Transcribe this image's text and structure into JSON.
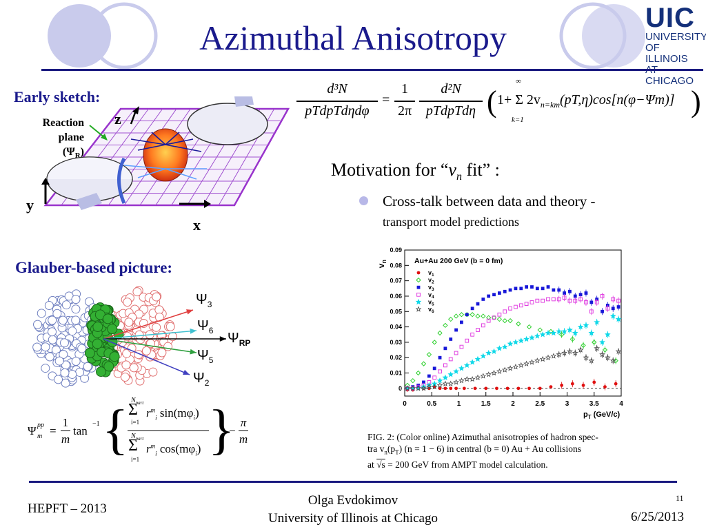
{
  "slide": {
    "title": "Azimuthal Anisotropy",
    "logo": {
      "big": "UIC",
      "line1": "UNIVERSITY",
      "line2": "OF ILLINOIS",
      "line3": "AT CHICAGO"
    },
    "early_sketch": {
      "heading": "Early sketch:",
      "reaction_plane_1": "Reaction",
      "reaction_plane_2": "plane",
      "reaction_plane_3": "(Ψ",
      "reaction_plane_sub": "R",
      "reaction_plane_4": ")",
      "axis_z": "z",
      "axis_y": "y",
      "axis_x": "x"
    },
    "equation": {
      "lhs_num": "d³N",
      "lhs_den": "pTdpTdηdφ",
      "equals": "=",
      "frac_num": "1",
      "frac_den": "2π",
      "rhs_num": "d²N",
      "rhs_den": "pTdpTdη",
      "body": "1+ Σ 2v",
      "sub": "n=km",
      "tail": "(pT,η)cos[n(φ−Ψm)]",
      "sum_top": "∞",
      "sum_bot": "k=1"
    },
    "motivation": {
      "heading_pre": "Motivation for “",
      "heading_v": "v",
      "heading_sub": "n",
      "heading_post": " fit” :",
      "bullet_1": "Cross-talk between data and theory -",
      "bullet_2": "transport model predictions"
    },
    "glauber": {
      "heading": "Glauber-based picture:",
      "psi3": "Ψ",
      "psi3_sub": "3",
      "psi6": "Ψ",
      "psi6_sub": "6",
      "psirp": "Ψ",
      "psirp_sub": "RP",
      "psi5": "Ψ",
      "psi5_sub": "5",
      "psi2": "Ψ",
      "psi2_sub": "2",
      "formula_lhs": "Ψ",
      "formula_sup": "pp",
      "formula_sub": "m",
      "formula_eq": "=",
      "formula_frac_num": "1",
      "formula_frac_den": "m",
      "formula_tan": "tan",
      "formula_tan_sup": "−1",
      "formula_sum_top": "N",
      "formula_sum_top_sub": "part",
      "formula_sum_bot": "i=1",
      "formula_num_term": "r",
      "formula_num_func": "sin(mφ",
      "formula_den_func": "cos(mφ",
      "formula_term_sub": "i",
      "formula_term_sup": "m",
      "formula_close": ")",
      "formula_minus": "−",
      "formula_pi": "π",
      "formula_pi_den": "m"
    },
    "caption": {
      "line1": "FIG. 2:  (Color online) Azimuthal anisotropies of hadron spec-",
      "line2": "tra v",
      "line2_sub": "n",
      "line2_rest": "(p",
      "line2_sub2": "T",
      "line2_rest2": ") (n = 1 − 6) in central (b = 0) Au + Au collisions",
      "line3_pre": "at ",
      "line3_sqrt": "√s",
      "line3_rest": " = 200 GeV from AMPT model calculation."
    },
    "footer": {
      "left": "HEPFT – 2013",
      "center_1": "Olga Evdokimov",
      "center_2": "University of Illinois at Chicago",
      "page": "11",
      "date": "6/25/2013"
    },
    "colors": {
      "accent": "#1a1a8c",
      "v1": "#e01010",
      "v2": "#30d030",
      "v3": "#1818d8",
      "v4": "#e040e0",
      "v5": "#10d8e8",
      "v6": "#505050"
    }
  },
  "chart_data": {
    "type": "scatter",
    "title": "Au+Au 200 GeV (b = 0 fm)",
    "xlabel": "p",
    "xlabel_sub": "T",
    "xlabel_unit": " (GeV/c)",
    "ylabel": "v",
    "ylabel_sub": "n",
    "xlim": [
      0,
      4
    ],
    "ylim": [
      -0.005,
      0.09
    ],
    "xticks": [
      "0",
      "0.5",
      "1",
      "1.5",
      "2",
      "2.5",
      "3",
      "3.5",
      "4"
    ],
    "yticks": [
      "0",
      "0.01",
      "0.02",
      "0.03",
      "0.04",
      "0.05",
      "0.06",
      "0.07",
      "0.08",
      "0.09"
    ],
    "legend_position": "top-left",
    "series": [
      {
        "name": "v",
        "sub": "1",
        "color": "#e01010",
        "marker": "dot",
        "x": [
          0.05,
          0.15,
          0.25,
          0.35,
          0.45,
          0.55,
          0.65,
          0.75,
          0.85,
          0.95,
          1.1,
          1.3,
          1.5,
          1.7,
          1.9,
          2.1,
          2.3,
          2.5,
          2.7,
          2.9,
          3.1,
          3.3,
          3.5,
          3.7,
          3.9
        ],
        "y": [
          -0.001,
          -0.001,
          0,
          0,
          0,
          0.001,
          0,
          0,
          0,
          0,
          0,
          0,
          0,
          0,
          0,
          0,
          0,
          0,
          0.001,
          0.002,
          0.003,
          0.002,
          0.004,
          0.001,
          0.003
        ]
      },
      {
        "name": "v",
        "sub": "2",
        "color": "#30d030",
        "marker": "diamond",
        "x": [
          0.05,
          0.15,
          0.25,
          0.35,
          0.45,
          0.55,
          0.65,
          0.75,
          0.85,
          0.95,
          1.05,
          1.15,
          1.25,
          1.35,
          1.45,
          1.55,
          1.65,
          1.75,
          1.85,
          1.95,
          2.1,
          2.3,
          2.5,
          2.7,
          2.9,
          3.1,
          3.3,
          3.5,
          3.7,
          3.9
        ],
        "y": [
          0.002,
          0.005,
          0.01,
          0.016,
          0.022,
          0.03,
          0.036,
          0.041,
          0.045,
          0.047,
          0.048,
          0.048,
          0.048,
          0.047,
          0.047,
          0.046,
          0.046,
          0.045,
          0.044,
          0.044,
          0.042,
          0.04,
          0.038,
          0.037,
          0.035,
          0.032,
          0.028,
          0.03,
          0.025,
          0.018
        ]
      },
      {
        "name": "v",
        "sub": "3",
        "color": "#1818d8",
        "marker": "square",
        "x": [
          0.05,
          0.15,
          0.25,
          0.35,
          0.45,
          0.55,
          0.65,
          0.75,
          0.85,
          0.95,
          1.05,
          1.15,
          1.25,
          1.35,
          1.45,
          1.55,
          1.65,
          1.75,
          1.85,
          1.95,
          2.05,
          2.15,
          2.25,
          2.35,
          2.45,
          2.55,
          2.65,
          2.75,
          2.85,
          2.95,
          3.05,
          3.15,
          3.25,
          3.35,
          3.45,
          3.55,
          3.65,
          3.75,
          3.85,
          3.95
        ],
        "y": [
          0,
          0.001,
          0.002,
          0.004,
          0.008,
          0.013,
          0.02,
          0.026,
          0.032,
          0.038,
          0.043,
          0.048,
          0.052,
          0.055,
          0.058,
          0.06,
          0.061,
          0.062,
          0.063,
          0.064,
          0.065,
          0.065,
          0.066,
          0.066,
          0.065,
          0.065,
          0.066,
          0.064,
          0.064,
          0.062,
          0.063,
          0.06,
          0.061,
          0.062,
          0.056,
          0.058,
          0.05,
          0.054,
          0.052,
          0.053
        ]
      },
      {
        "name": "v",
        "sub": "4",
        "color": "#e040e0",
        "marker": "open-square",
        "x": [
          0.05,
          0.15,
          0.25,
          0.35,
          0.45,
          0.55,
          0.65,
          0.75,
          0.85,
          0.95,
          1.05,
          1.15,
          1.25,
          1.35,
          1.45,
          1.55,
          1.65,
          1.75,
          1.85,
          1.95,
          2.05,
          2.15,
          2.25,
          2.35,
          2.45,
          2.55,
          2.65,
          2.75,
          2.85,
          2.95,
          3.05,
          3.15,
          3.25,
          3.35,
          3.45,
          3.55,
          3.65,
          3.75,
          3.85,
          3.95
        ],
        "y": [
          0,
          0,
          0.001,
          0.002,
          0.004,
          0.007,
          0.011,
          0.015,
          0.019,
          0.023,
          0.027,
          0.031,
          0.035,
          0.038,
          0.041,
          0.044,
          0.046,
          0.048,
          0.05,
          0.052,
          0.053,
          0.054,
          0.055,
          0.056,
          0.057,
          0.057,
          0.058,
          0.058,
          0.058,
          0.059,
          0.057,
          0.057,
          0.058,
          0.056,
          0.05,
          0.056,
          0.06,
          0.052,
          0.058,
          0.057
        ]
      },
      {
        "name": "v",
        "sub": "5",
        "color": "#10d8e8",
        "marker": "star",
        "x": [
          0.05,
          0.15,
          0.25,
          0.35,
          0.45,
          0.55,
          0.65,
          0.75,
          0.85,
          0.95,
          1.05,
          1.15,
          1.25,
          1.35,
          1.45,
          1.55,
          1.65,
          1.75,
          1.85,
          1.95,
          2.05,
          2.15,
          2.25,
          2.35,
          2.45,
          2.55,
          2.65,
          2.75,
          2.85,
          2.95,
          3.05,
          3.15,
          3.25,
          3.35,
          3.45,
          3.55,
          3.65,
          3.75,
          3.85,
          3.95
        ],
        "y": [
          0,
          0,
          0,
          0.001,
          0.002,
          0.003,
          0.005,
          0.007,
          0.009,
          0.011,
          0.013,
          0.015,
          0.017,
          0.019,
          0.021,
          0.023,
          0.024,
          0.026,
          0.027,
          0.029,
          0.03,
          0.031,
          0.032,
          0.033,
          0.034,
          0.035,
          0.036,
          0.036,
          0.037,
          0.037,
          0.038,
          0.036,
          0.04,
          0.041,
          0.036,
          0.043,
          0.03,
          0.035,
          0.047,
          0.045
        ]
      },
      {
        "name": "v",
        "sub": "6",
        "color": "#505050",
        "marker": "open-star",
        "x": [
          0.05,
          0.15,
          0.25,
          0.35,
          0.45,
          0.55,
          0.65,
          0.75,
          0.85,
          0.95,
          1.05,
          1.15,
          1.25,
          1.35,
          1.45,
          1.55,
          1.65,
          1.75,
          1.85,
          1.95,
          2.05,
          2.15,
          2.25,
          2.35,
          2.45,
          2.55,
          2.65,
          2.75,
          2.85,
          2.95,
          3.05,
          3.15,
          3.25,
          3.35,
          3.45,
          3.55,
          3.65,
          3.75,
          3.85,
          3.95
        ],
        "y": [
          0,
          0,
          0,
          0,
          0.001,
          0.001,
          0.002,
          0.003,
          0.003,
          0.004,
          0.005,
          0.006,
          0.006,
          0.007,
          0.008,
          0.009,
          0.01,
          0.011,
          0.012,
          0.013,
          0.014,
          0.015,
          0.016,
          0.017,
          0.018,
          0.019,
          0.02,
          0.021,
          0.022,
          0.023,
          0.024,
          0.023,
          0.025,
          0.02,
          0.018,
          0.026,
          0.022,
          0.02,
          0.018,
          0.024
        ]
      }
    ]
  }
}
